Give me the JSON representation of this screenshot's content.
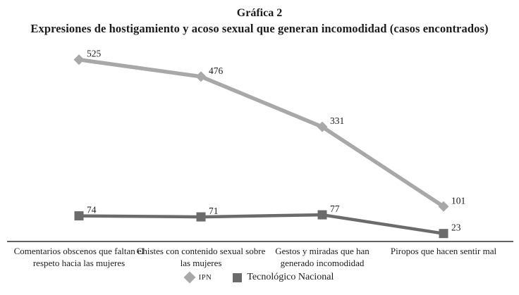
{
  "title": "Gráfica 2",
  "subtitle": "Expresiones de hostigamiento y acoso sexual que generan incomodidad (casos encontrados)",
  "colors": {
    "ipn_series": "#a8a8a8",
    "tec_series": "#6b6b6b",
    "axis": "#2e2e2e",
    "text": "#1c1c1c",
    "background": "#ffffff"
  },
  "chart_data": {
    "type": "line",
    "categories": [
      "Comentarios obscenos que faltan el respeto hacia las mujeres",
      "Chistes con contenido sexual sobre las mujeres",
      "Gestos y miradas que han generado incomodidad",
      "Piropos que hacen sentir mal"
    ],
    "series": [
      {
        "name": "IPN",
        "marker": "diamond",
        "color": "#a8a8a8",
        "values": [
          525,
          476,
          331,
          101
        ]
      },
      {
        "name": "Tecnológico Nacional",
        "marker": "square",
        "color": "#6b6b6b",
        "values": [
          74,
          71,
          77,
          23
        ]
      }
    ],
    "title": "Gráfica 2",
    "subtitle": "Expresiones de hostigamiento y acoso sexual que generan incomodidad (casos encontrados)",
    "xlabel": "",
    "ylabel": "",
    "ylim": [
      0,
      560
    ],
    "grid": false,
    "y_axis_visible": false,
    "data_labels": true,
    "legend_position": "bottom"
  },
  "legend": {
    "items": [
      {
        "label": "IPN",
        "marker": "diamond"
      },
      {
        "label": "Tecnológico Nacional",
        "marker": "square"
      }
    ]
  }
}
